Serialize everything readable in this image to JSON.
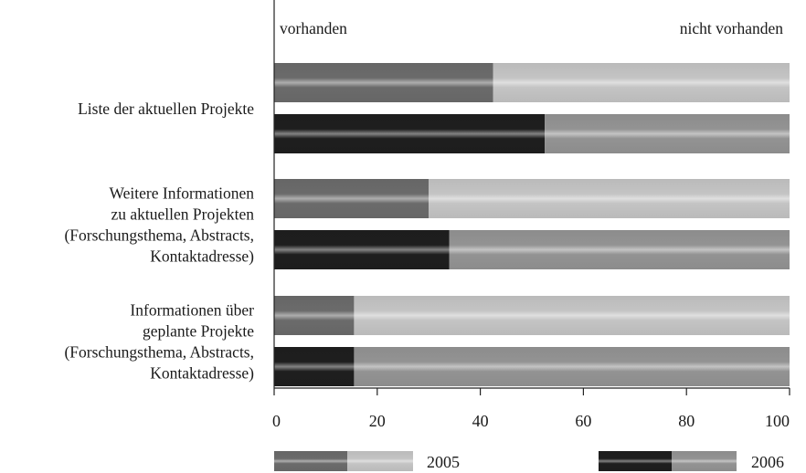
{
  "chart_data": {
    "type": "bar",
    "orientation": "horizontal",
    "stacked": true,
    "header": {
      "left": "vorhanden",
      "right": "nicht vorhanden"
    },
    "categories": [
      {
        "lines": [
          "Liste der aktuellen Projekte"
        ]
      },
      {
        "lines": [
          "Weitere Informationen",
          "zu aktuellen Projekten",
          "(Forschungsthema, Abstracts,",
          "Kontaktadresse)"
        ]
      },
      {
        "lines": [
          "Informationen über",
          "geplante Projekte",
          "(Forschungsthema, Abstracts,",
          "Kontaktadresse)"
        ]
      }
    ],
    "series": [
      {
        "name": "2005",
        "vorhanden": [
          42.5,
          30,
          15.5
        ]
      },
      {
        "name": "2006",
        "vorhanden": [
          52.5,
          34,
          15.5
        ]
      }
    ],
    "xlim": [
      0,
      100
    ],
    "xticks": [
      "0",
      "20",
      "40",
      "60",
      "80",
      "100"
    ],
    "grid": false,
    "legend_position": "bottom",
    "colors": {
      "2005_vorhanden": "#6b6b6b",
      "2005_nicht_vorhanden": "#c4c4c4",
      "2006_vorhanden": "#1e1e1e",
      "2006_nicht_vorhanden": "#939393"
    }
  }
}
